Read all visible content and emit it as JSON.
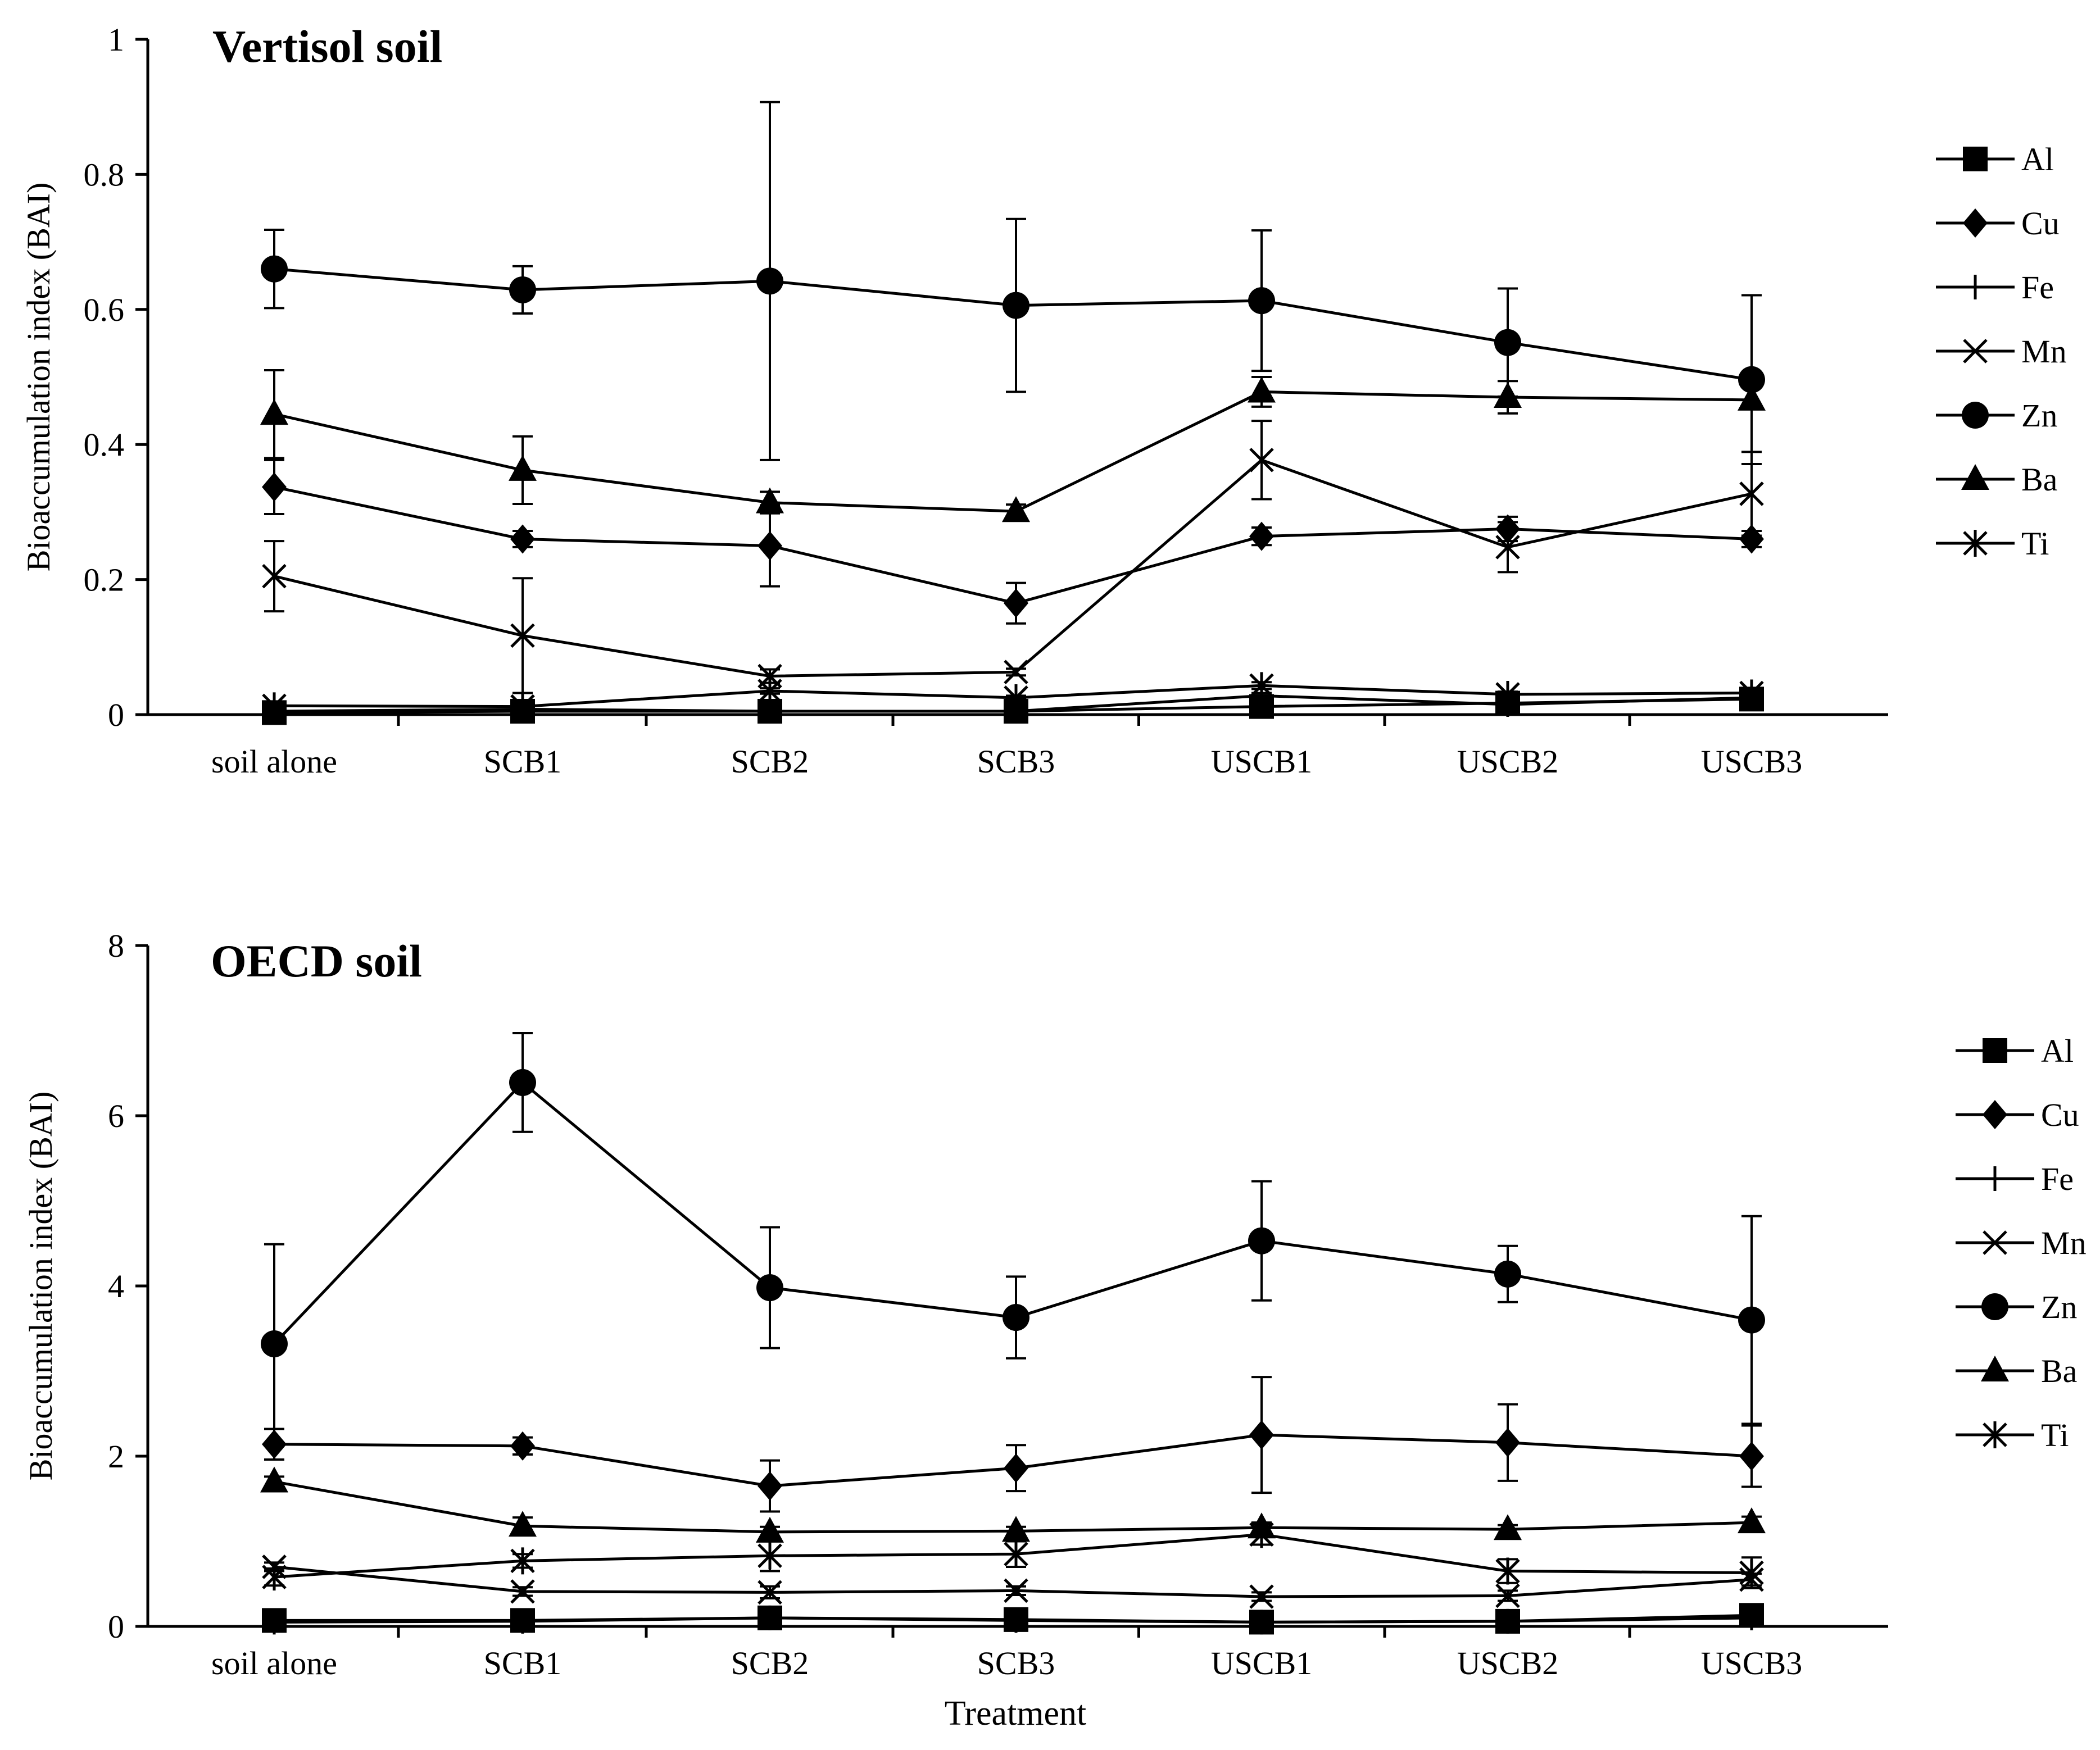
{
  "chart_data": [
    {
      "type": "line",
      "title": "Vertisol soil",
      "xlabel": "",
      "ylabel": "Bioaccumulation index (BAI)",
      "ylim": [
        0,
        1
      ],
      "yticks": [
        0,
        0.2,
        0.4,
        0.6,
        0.8,
        1
      ],
      "ytick_labels": [
        "0",
        "0.2",
        "0.4",
        "0.6",
        "0.8",
        "1"
      ],
      "categories": [
        "soil alone",
        "SCB1",
        "SCB2",
        "SCB3",
        "USCB1",
        "USCB2",
        "USCB3"
      ],
      "legend_position": "right",
      "series": [
        {
          "name": "Al",
          "marker": "square",
          "values": [
            0.003,
            0.005,
            0.005,
            0.005,
            0.012,
            0.017,
            0.023
          ],
          "errors": [
            0.002,
            0.002,
            0.002,
            0.002,
            0.003,
            0.004,
            0.005
          ]
        },
        {
          "name": "Cu",
          "marker": "diamond",
          "values": [
            0.337,
            0.26,
            0.25,
            0.165,
            0.264,
            0.275,
            0.26
          ],
          "errors": [
            0.04,
            0.012,
            0.06,
            0.03,
            0.013,
            0.018,
            0.012
          ]
        },
        {
          "name": "Fe",
          "marker": "plus",
          "values": [
            0.005,
            0.008,
            0.005,
            0.005,
            0.028,
            0.015,
            0.025
          ],
          "errors": [
            0.002,
            0.002,
            0.002,
            0.002,
            0.004,
            0.003,
            0.004
          ]
        },
        {
          "name": "Mn",
          "marker": "x",
          "values": [
            0.205,
            0.117,
            0.057,
            0.063,
            0.377,
            0.248,
            0.327
          ],
          "errors": [
            0.052,
            0.085,
            0.01,
            0.005,
            0.058,
            0.037,
            0.062
          ]
        },
        {
          "name": "Zn",
          "marker": "circle",
          "values": [
            0.66,
            0.629,
            0.642,
            0.606,
            0.613,
            0.551,
            0.496
          ],
          "errors": [
            0.058,
            0.035,
            0.265,
            0.128,
            0.104,
            0.08,
            0.125
          ]
        },
        {
          "name": "Ba",
          "marker": "triangle",
          "values": [
            0.445,
            0.362,
            0.314,
            0.301,
            0.478,
            0.47,
            0.466
          ],
          "errors": [
            0.065,
            0.05,
            0.016,
            0.01,
            0.022,
            0.024,
            0.0
          ]
        },
        {
          "name": "Ti",
          "marker": "asterisk",
          "values": [
            0.013,
            0.012,
            0.035,
            0.025,
            0.043,
            0.03,
            0.032
          ],
          "errors": [
            0.003,
            0.003,
            0.004,
            0.003,
            0.005,
            0.004,
            0.004
          ]
        }
      ]
    },
    {
      "type": "line",
      "title": "OECD soil",
      "xlabel": "Treatment",
      "ylabel": "Bioaccumulation index (BAI)",
      "ylim": [
        0,
        8
      ],
      "yticks": [
        0,
        2,
        4,
        6,
        8
      ],
      "ytick_labels": [
        "0",
        "2",
        "4",
        "6",
        "8"
      ],
      "categories": [
        "soil alone",
        "SCB1",
        "SCB2",
        "SCB3",
        "USCB1",
        "USCB2",
        "USCB3"
      ],
      "legend_position": "right",
      "series": [
        {
          "name": "Al",
          "marker": "square",
          "values": [
            0.07,
            0.07,
            0.1,
            0.08,
            0.05,
            0.06,
            0.13
          ],
          "errors": [
            0.02,
            0.02,
            0.03,
            0.02,
            0.02,
            0.02,
            0.03
          ]
        },
        {
          "name": "Cu",
          "marker": "diamond",
          "values": [
            2.14,
            2.12,
            1.65,
            1.86,
            2.25,
            2.16,
            2.0
          ],
          "errors": [
            0.18,
            0.1,
            0.3,
            0.27,
            0.68,
            0.45,
            0.36
          ]
        },
        {
          "name": "Fe",
          "marker": "plus",
          "values": [
            0.05,
            0.06,
            0.1,
            0.07,
            0.05,
            0.06,
            0.1
          ],
          "errors": [
            0.02,
            0.02,
            0.02,
            0.02,
            0.02,
            0.02,
            0.02
          ]
        },
        {
          "name": "Mn",
          "marker": "x",
          "values": [
            0.7,
            0.41,
            0.4,
            0.42,
            0.35,
            0.36,
            0.55
          ],
          "errors": [
            0.05,
            0.05,
            0.07,
            0.05,
            0.05,
            0.06,
            0.07
          ]
        },
        {
          "name": "Zn",
          "marker": "circle",
          "values": [
            3.32,
            6.39,
            3.98,
            3.63,
            4.53,
            4.14,
            3.6
          ],
          "errors": [
            1.17,
            0.58,
            0.71,
            0.48,
            0.7,
            0.33,
            1.22
          ]
        },
        {
          "name": "Ba",
          "marker": "triangle",
          "values": [
            1.7,
            1.18,
            1.11,
            1.12,
            1.16,
            1.14,
            1.22
          ],
          "errors": [
            0.06,
            0.1,
            0.06,
            0.05,
            0.06,
            0.05,
            0.07
          ]
        },
        {
          "name": "Ti",
          "marker": "asterisk",
          "values": [
            0.58,
            0.77,
            0.83,
            0.85,
            1.08,
            0.65,
            0.63
          ],
          "errors": [
            0.1,
            0.08,
            0.18,
            0.15,
            0.12,
            0.14,
            0.18
          ]
        }
      ]
    }
  ]
}
